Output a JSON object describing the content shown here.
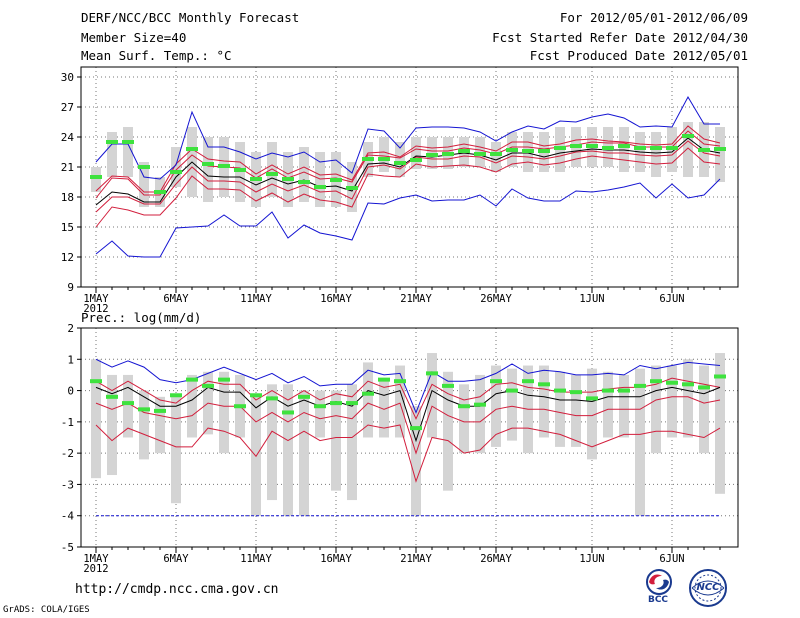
{
  "header": {
    "title": "DERF/NCC/BCC Monthly Forecast",
    "member": "Member Size=40",
    "variable1": "Mean Surf. Temp.: °C",
    "period": "For 2012/05/01-2012/06/09",
    "started": "Fcst Started Refer Date 2012/04/30",
    "produced": "Fcst Produced Date 2012/05/01"
  },
  "footer": {
    "url": "http://cmdp.ncc.cma.gov.cn",
    "credit": "GrADS: COLA/IGES",
    "logo_bcc": "BCC",
    "logo_ncc": "NCC"
  },
  "colors": {
    "mean": "#000000",
    "inner_band": "#d21e3c",
    "outer_band": "#1414d2",
    "box": "#d4d4d4",
    "median": "#3ee23e"
  },
  "chart_data": [
    {
      "type": "line",
      "title": "Mean Surf. Temp.: °C",
      "ylabel": "°C",
      "ylim": [
        9,
        31
      ],
      "yticks": [
        9,
        12,
        15,
        18,
        21,
        24,
        27,
        30
      ],
      "xticks": [
        "1MAY",
        "6MAY",
        "11MAY",
        "16MAY",
        "21MAY",
        "26MAY",
        "1JUN",
        "6JUN"
      ],
      "xticks_day": [
        1,
        6,
        11,
        16,
        21,
        26,
        32,
        37
      ],
      "year_label": "2012",
      "grid": true,
      "days": [
        1,
        2,
        3,
        4,
        5,
        6,
        7,
        8,
        9,
        10,
        11,
        12,
        13,
        14,
        15,
        16,
        17,
        18,
        19,
        20,
        21,
        22,
        23,
        24,
        25,
        26,
        27,
        28,
        29,
        30,
        31,
        32,
        33,
        34,
        35,
        36,
        37,
        38,
        39,
        40
      ],
      "series": [
        {
          "name": "max",
          "values": [
            12.3,
            13.6,
            12.1,
            12.0,
            12.0,
            14.9,
            15.0,
            15.1,
            16.2,
            15.1,
            15.1,
            16.5,
            13.9,
            15.2,
            14.4,
            14.1,
            13.7,
            17.4,
            17.3,
            17.9,
            18.2,
            17.6,
            17.7,
            17.7,
            18.2,
            17.1,
            18.8,
            17.9,
            17.6,
            17.6,
            18.6,
            18.5,
            18.7,
            19.0,
            19.4,
            17.9,
            19.3,
            17.9,
            18.2,
            19.8
          ]
        },
        {
          "name": "p10",
          "values": [
            15.0,
            17.0,
            16.7,
            16.2,
            16.2,
            17.9,
            20.1,
            18.8,
            18.8,
            18.7,
            17.6,
            18.4,
            17.5,
            18.3,
            17.7,
            17.5,
            17.0,
            20.3,
            20.1,
            20.0,
            21.3,
            21.0,
            21.1,
            21.2,
            21.0,
            20.5,
            21.3,
            21.5,
            21.2,
            21.4,
            21.8,
            22.1,
            21.9,
            21.7,
            21.5,
            21.3,
            21.4,
            22.9,
            21.5,
            21.3
          ]
        },
        {
          "name": "p25",
          "values": [
            16.5,
            18.0,
            18.0,
            17.3,
            17.3,
            19.3,
            21.0,
            19.6,
            19.6,
            19.5,
            18.5,
            19.3,
            18.6,
            19.2,
            18.5,
            18.6,
            17.8,
            21.0,
            21.2,
            20.8,
            22.0,
            21.8,
            21.8,
            22.1,
            22.0,
            21.4,
            22.1,
            22.0,
            21.8,
            22.1,
            22.5,
            22.6,
            22.4,
            22.4,
            22.2,
            22.1,
            22.2,
            23.6,
            22.4,
            22.1
          ]
        },
        {
          "name": "mean",
          "values": [
            17.2,
            18.5,
            18.3,
            17.5,
            17.5,
            20.0,
            21.5,
            20.1,
            20.0,
            20.0,
            19.2,
            19.9,
            19.3,
            19.7,
            19.0,
            19.1,
            18.6,
            21.3,
            21.4,
            21.0,
            22.1,
            22.0,
            22.2,
            22.4,
            22.2,
            21.7,
            22.4,
            22.4,
            22.0,
            22.4,
            22.6,
            22.8,
            22.7,
            22.7,
            22.5,
            22.4,
            22.5,
            23.9,
            22.7,
            22.4
          ]
        },
        {
          "name": "p75",
          "values": [
            17.9,
            19.9,
            19.8,
            18.2,
            18.2,
            20.7,
            22.2,
            21.1,
            21.0,
            20.9,
            19.9,
            20.8,
            19.9,
            20.5,
            19.8,
            19.9,
            19.5,
            22.2,
            22.1,
            21.9,
            22.8,
            22.6,
            22.6,
            22.9,
            22.7,
            22.3,
            23.0,
            23.0,
            22.8,
            23.0,
            23.2,
            23.5,
            23.4,
            23.4,
            23.0,
            23.0,
            23.0,
            24.6,
            23.3,
            23.1
          ]
        },
        {
          "name": "p90",
          "values": [
            18.6,
            20.1,
            20.0,
            18.5,
            18.5,
            21.3,
            22.8,
            21.8,
            21.6,
            21.5,
            20.3,
            21.2,
            20.3,
            21.0,
            20.2,
            20.3,
            19.7,
            22.4,
            22.5,
            22.0,
            23.1,
            22.9,
            23.0,
            23.3,
            23.0,
            22.6,
            23.5,
            23.5,
            23.1,
            23.3,
            23.7,
            23.8,
            23.6,
            23.5,
            23.3,
            23.2,
            23.3,
            25.1,
            23.8,
            23.4
          ]
        },
        {
          "name": "min",
          "values": [
            21.5,
            23.3,
            23.3,
            20.0,
            19.8,
            21.2,
            26.5,
            23.0,
            23.0,
            22.5,
            21.8,
            22.4,
            22.0,
            22.5,
            21.5,
            21.7,
            20.4,
            24.8,
            24.6,
            22.9,
            24.9,
            25.0,
            25.0,
            24.9,
            24.5,
            23.6,
            24.5,
            25.1,
            24.8,
            25.6,
            25.5,
            26.0,
            26.3,
            25.9,
            25.0,
            25.1,
            25.0,
            28.0,
            25.3,
            25.3
          ]
        }
      ],
      "boxes": {
        "low": [
          18.5,
          20.0,
          20.0,
          17.0,
          17.0,
          19.0,
          18.0,
          17.5,
          18.0,
          17.5,
          17.0,
          18.0,
          17.0,
          17.5,
          17.0,
          17.0,
          16.5,
          20.0,
          20.5,
          20.0,
          20.8,
          20.8,
          20.8,
          21.0,
          21.0,
          20.5,
          21.0,
          20.5,
          20.5,
          20.5,
          21.0,
          21.0,
          21.0,
          20.5,
          20.5,
          20.0,
          20.5,
          20.0,
          20.0,
          19.5
        ],
        "high": [
          21.0,
          24.5,
          25.0,
          21.5,
          20.0,
          23.0,
          25.0,
          24.0,
          24.0,
          23.5,
          22.5,
          23.5,
          22.5,
          23.0,
          22.5,
          22.5,
          21.5,
          23.5,
          24.0,
          23.5,
          24.0,
          24.0,
          24.0,
          24.0,
          24.0,
          23.5,
          24.5,
          24.5,
          24.5,
          25.0,
          25.0,
          25.0,
          25.0,
          25.0,
          24.5,
          24.5,
          25.0,
          25.5,
          25.5,
          25.0
        ]
      },
      "median": [
        20.0,
        23.5,
        23.5,
        21.0,
        18.5,
        20.5,
        22.8,
        21.3,
        21.1,
        20.7,
        19.8,
        20.3,
        19.8,
        19.5,
        19.0,
        19.7,
        18.9,
        21.8,
        21.8,
        21.4,
        21.7,
        22.2,
        22.3,
        22.6,
        22.3,
        22.3,
        22.7,
        22.6,
        22.6,
        22.9,
        23.1,
        23.1,
        22.9,
        23.1,
        22.9,
        22.9,
        22.9,
        24.1,
        22.7,
        22.8
      ]
    },
    {
      "type": "line",
      "title": "Prec.: log(mm/d)",
      "ylabel": "log(mm/d)",
      "ylim": [
        -5,
        2
      ],
      "yticks": [
        -5,
        -4,
        -3,
        -2,
        -1,
        0,
        1,
        2
      ],
      "xticks": [
        "1MAY",
        "6MAY",
        "11MAY",
        "16MAY",
        "21MAY",
        "26MAY",
        "1JUN",
        "6JUN"
      ],
      "xticks_day": [
        1,
        6,
        11,
        16,
        21,
        26,
        32,
        37
      ],
      "year_label": "2012",
      "grid": true,
      "days": [
        1,
        2,
        3,
        4,
        5,
        6,
        7,
        8,
        9,
        10,
        11,
        12,
        13,
        14,
        15,
        16,
        17,
        18,
        19,
        20,
        21,
        22,
        23,
        24,
        25,
        26,
        27,
        28,
        29,
        30,
        31,
        32,
        33,
        34,
        35,
        36,
        37,
        38,
        39,
        40
      ],
      "series": [
        {
          "name": "max",
          "values": [
            1.0,
            0.75,
            0.95,
            0.75,
            0.35,
            0.25,
            0.35,
            0.55,
            0.75,
            0.55,
            0.35,
            0.55,
            0.25,
            0.45,
            0.15,
            0.2,
            0.2,
            0.65,
            0.5,
            0.55,
            -0.7,
            0.6,
            0.3,
            0.3,
            0.35,
            0.55,
            0.85,
            0.55,
            0.65,
            0.6,
            0.5,
            0.5,
            0.55,
            0.5,
            0.8,
            0.7,
            0.8,
            0.9,
            0.85,
            0.8
          ]
        },
        {
          "name": "p10",
          "values": [
            0.3,
            0.0,
            0.3,
            0.0,
            -0.3,
            -0.4,
            0.0,
            0.3,
            0.2,
            0.2,
            -0.3,
            0.0,
            -0.3,
            0.0,
            -0.3,
            -0.1,
            -0.2,
            0.3,
            0.1,
            0.2,
            -0.9,
            0.2,
            -0.1,
            -0.3,
            -0.2,
            0.2,
            0.25,
            0.1,
            0.05,
            -0.05,
            -0.05,
            -0.05,
            0.05,
            0.1,
            0.1,
            0.2,
            0.4,
            0.3,
            0.2,
            0.1
          ]
        },
        {
          "name": "mean",
          "values": [
            0.1,
            -0.1,
            0.1,
            -0.2,
            -0.5,
            -0.5,
            -0.3,
            0.1,
            -0.05,
            -0.05,
            -0.55,
            -0.2,
            -0.5,
            -0.3,
            -0.5,
            -0.35,
            -0.5,
            0.0,
            -0.15,
            0.0,
            -1.6,
            0.0,
            -0.3,
            -0.5,
            -0.5,
            -0.1,
            0.0,
            -0.15,
            -0.2,
            -0.3,
            -0.3,
            -0.35,
            -0.2,
            -0.2,
            -0.2,
            0.0,
            0.1,
            0.0,
            -0.1,
            0.1
          ]
        },
        {
          "name": "p75",
          "values": [
            -0.4,
            -0.6,
            -0.4,
            -0.7,
            -0.8,
            -0.9,
            -0.8,
            -0.4,
            -0.5,
            -0.5,
            -1.0,
            -0.7,
            -1.0,
            -0.7,
            -0.9,
            -0.8,
            -0.9,
            -0.4,
            -0.6,
            -0.4,
            -2.0,
            -0.5,
            -0.8,
            -1.0,
            -1.0,
            -0.6,
            -0.5,
            -0.6,
            -0.6,
            -0.7,
            -0.8,
            -0.8,
            -0.6,
            -0.6,
            -0.6,
            -0.3,
            -0.2,
            -0.2,
            -0.4,
            -0.3
          ]
        },
        {
          "name": "p90",
          "values": [
            -1.1,
            -1.6,
            -1.2,
            -1.4,
            -1.6,
            -1.8,
            -1.8,
            -1.2,
            -1.3,
            -1.5,
            -2.1,
            -1.3,
            -1.6,
            -1.3,
            -1.6,
            -1.5,
            -1.5,
            -1.1,
            -1.2,
            -1.1,
            -2.9,
            -1.5,
            -1.6,
            -2.0,
            -1.9,
            -1.4,
            -1.2,
            -1.2,
            -1.3,
            -1.4,
            -1.6,
            -1.8,
            -1.6,
            -1.4,
            -1.4,
            -1.3,
            -1.3,
            -1.4,
            -1.5,
            -1.2
          ]
        },
        {
          "name": "min",
          "values": [
            -4.0,
            -4.0,
            -4.0,
            -4.0,
            -4.0,
            -4.0,
            -4.0,
            -4.0,
            -4.0,
            -4.0,
            -4.0,
            -4.0,
            -4.0,
            -4.0,
            -4.0,
            -4.0,
            -4.0,
            -4.0,
            -4.0,
            -4.0,
            -4.0,
            -4.0,
            -4.0,
            -4.0,
            -4.0,
            -4.0,
            -4.0,
            -4.0,
            -4.0,
            -4.0,
            -4.0,
            -4.0,
            -4.0,
            -4.0,
            -4.0,
            -4.0,
            -4.0,
            -4.0,
            -4.0,
            -4.0
          ]
        }
      ],
      "boxes": {
        "low": [
          -2.8,
          -2.7,
          -1.5,
          -2.2,
          -2.0,
          -3.6,
          -1.5,
          -1.4,
          -2.0,
          -1.5,
          -4.0,
          -3.5,
          -4.0,
          -4.0,
          -1.5,
          -3.2,
          -3.5,
          -1.5,
          -1.5,
          -1.5,
          -4.0,
          -1.5,
          -3.2,
          -2.0,
          -2.0,
          -1.8,
          -1.6,
          -2.0,
          -1.5,
          -1.8,
          -1.8,
          -2.2,
          -1.5,
          -1.5,
          -4.0,
          -2.0,
          -1.5,
          -1.5,
          -2.0,
          -3.3
        ],
        "high": [
          1.0,
          0.5,
          0.5,
          0.0,
          -0.2,
          -0.2,
          0.5,
          0.6,
          0.6,
          0.5,
          -0.2,
          0.2,
          0.2,
          0.0,
          0.0,
          0.0,
          0.2,
          0.9,
          0.4,
          0.8,
          -0.5,
          1.2,
          0.6,
          0.2,
          0.5,
          0.8,
          0.7,
          0.8,
          0.8,
          0.6,
          0.5,
          0.7,
          0.6,
          0.5,
          0.7,
          0.8,
          0.8,
          1.0,
          0.8,
          1.2
        ]
      },
      "median": [
        0.3,
        -0.2,
        -0.4,
        -0.6,
        -0.65,
        -0.15,
        0.35,
        0.15,
        0.35,
        -0.5,
        -0.15,
        -0.25,
        -0.7,
        -0.2,
        -0.5,
        -0.4,
        -0.4,
        -0.1,
        0.35,
        0.3,
        -1.2,
        0.55,
        0.15,
        -0.5,
        -0.45,
        0.3,
        0.0,
        0.3,
        0.2,
        0.0,
        -0.05,
        -0.25,
        0.0,
        0.0,
        0.15,
        0.3,
        0.25,
        0.2,
        0.1,
        0.45
      ]
    }
  ]
}
